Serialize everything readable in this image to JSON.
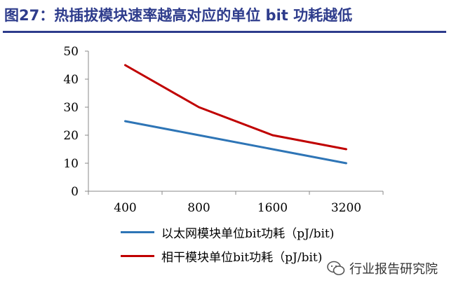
{
  "figure": {
    "title": "图27：热插拔模块速率越高对应的单位 bit 功耗越低"
  },
  "chart_data": {
    "type": "line",
    "title": "",
    "xlabel": "",
    "ylabel": "",
    "categories": [
      "400",
      "800",
      "1600",
      "3200"
    ],
    "ylim": [
      0,
      50
    ],
    "yticks": [
      "0",
      "10",
      "20",
      "30",
      "40",
      "50"
    ],
    "grid": false,
    "legend_position": "bottom",
    "series": [
      {
        "name": "以太网模块单位bit功耗（pJ/bit)",
        "values": [
          25,
          20,
          15,
          10
        ],
        "color": "#2E75B6"
      },
      {
        "name": "相干模块单位bit功耗（pJ/bit)",
        "values": [
          45,
          30,
          20,
          15
        ],
        "color": "#C00000"
      }
    ]
  },
  "watermark": {
    "text": "行业报告研究院",
    "icon": "wechat-official-account-icon"
  }
}
